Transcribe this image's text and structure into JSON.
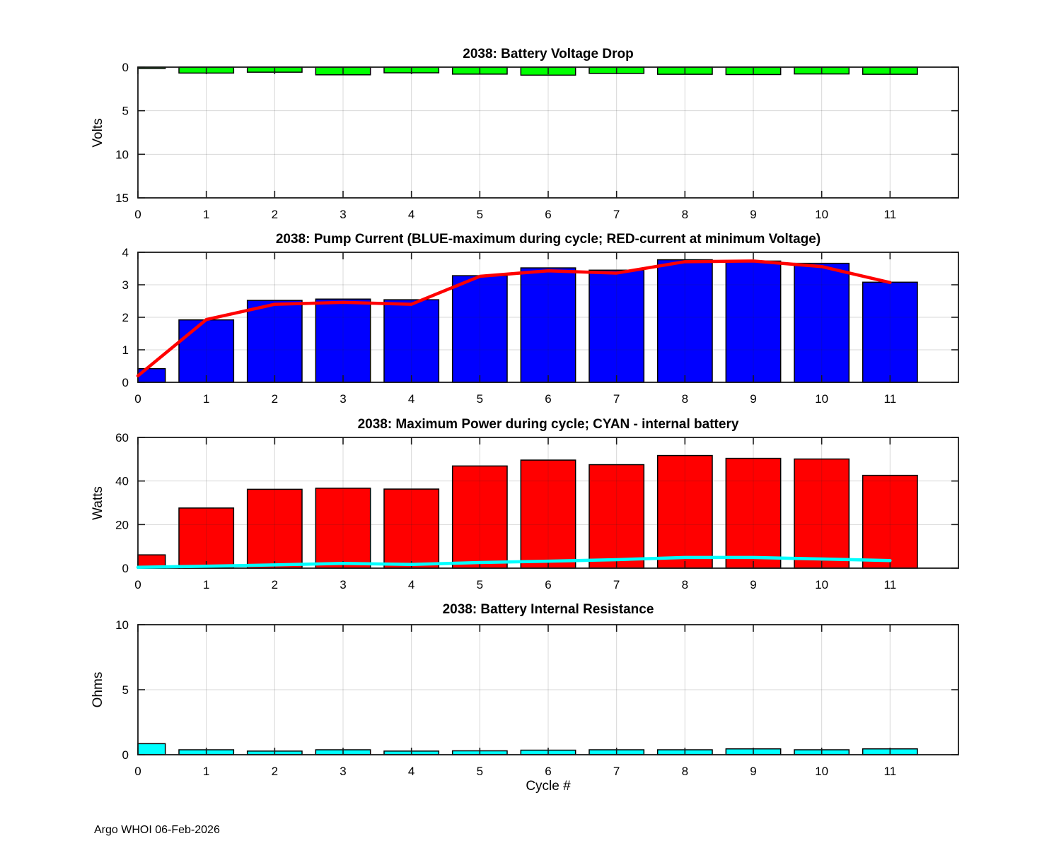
{
  "figure": {
    "footer": "Argo WHOI 06-Feb-2026",
    "xlabel": "Cycle #",
    "background": "#ffffff",
    "axis_color": "#1a1a1a",
    "grid_color": "rgba(38,38,38,0.18)"
  },
  "chart_data": [
    {
      "type": "bar",
      "title": "2038: Battery Voltage Drop",
      "ylabel": "Volts",
      "bar_color": "#00ff00",
      "categories": [
        0,
        1,
        2,
        3,
        4,
        5,
        6,
        7,
        8,
        9,
        10,
        11
      ],
      "values": [
        0.15,
        0.68,
        0.58,
        0.88,
        0.65,
        0.8,
        0.92,
        0.72,
        0.82,
        0.85,
        0.78,
        0.82
      ],
      "ylim": [
        0,
        15
      ],
      "y_reversed": true,
      "yticks": [
        0,
        5,
        10,
        15
      ],
      "xlim": [
        0,
        12
      ],
      "bar_width": 0.8,
      "grid": true
    },
    {
      "type": "bar+line",
      "title": "2038: Pump Current (BLUE-maximum during cycle; RED-current at minimum Voltage)",
      "ylabel": "",
      "bar_color": "#0000ff",
      "line_color": "#ff0000",
      "line_legend": "current at minimum Voltage",
      "bar_legend": "maximum during cycle",
      "categories": [
        0,
        1,
        2,
        3,
        4,
        5,
        6,
        7,
        8,
        9,
        10,
        11
      ],
      "values": [
        0.42,
        1.92,
        2.52,
        2.56,
        2.54,
        3.28,
        3.52,
        3.45,
        3.77,
        3.73,
        3.66,
        3.08
      ],
      "line_values": [
        0.2,
        1.93,
        2.4,
        2.46,
        2.4,
        3.26,
        3.43,
        3.36,
        3.71,
        3.73,
        3.56,
        3.07
      ],
      "ylim": [
        0,
        4
      ],
      "y_reversed": false,
      "yticks": [
        0,
        1,
        2,
        3,
        4
      ],
      "xlim": [
        0,
        12
      ],
      "bar_width": 0.8,
      "grid": true
    },
    {
      "type": "bar+line",
      "title": "2038: Maximum Power during cycle; CYAN - internal battery",
      "ylabel": "Watts",
      "bar_color": "#ff0000",
      "line_color": "#00ffff",
      "line_legend": "internal battery",
      "bar_legend": "maximum power during cycle",
      "categories": [
        0,
        1,
        2,
        3,
        4,
        5,
        6,
        7,
        8,
        9,
        10,
        11
      ],
      "values": [
        6.1,
        27.6,
        36.2,
        36.7,
        36.3,
        46.9,
        49.6,
        47.5,
        51.7,
        50.4,
        50.1,
        42.6
      ],
      "line_values": [
        0.4,
        0.9,
        1.5,
        2.2,
        1.7,
        2.6,
        3.2,
        3.9,
        4.9,
        4.9,
        4.2,
        3.5
      ],
      "ylim": [
        0,
        60
      ],
      "y_reversed": false,
      "yticks": [
        0,
        20,
        40,
        60
      ],
      "xlim": [
        0,
        12
      ],
      "bar_width": 0.8,
      "grid": true
    },
    {
      "type": "bar",
      "title": "2038: Battery Internal Resistance",
      "ylabel": "Ohms",
      "bar_color": "#00ffff",
      "categories": [
        0,
        1,
        2,
        3,
        4,
        5,
        6,
        7,
        8,
        9,
        10,
        11
      ],
      "values": [
        0.85,
        0.38,
        0.28,
        0.38,
        0.28,
        0.3,
        0.35,
        0.38,
        0.38,
        0.45,
        0.38,
        0.45
      ],
      "ylim": [
        0,
        10
      ],
      "y_reversed": false,
      "yticks": [
        0,
        5,
        10
      ],
      "xlim": [
        0,
        12
      ],
      "bar_width": 0.8,
      "grid": true
    }
  ]
}
